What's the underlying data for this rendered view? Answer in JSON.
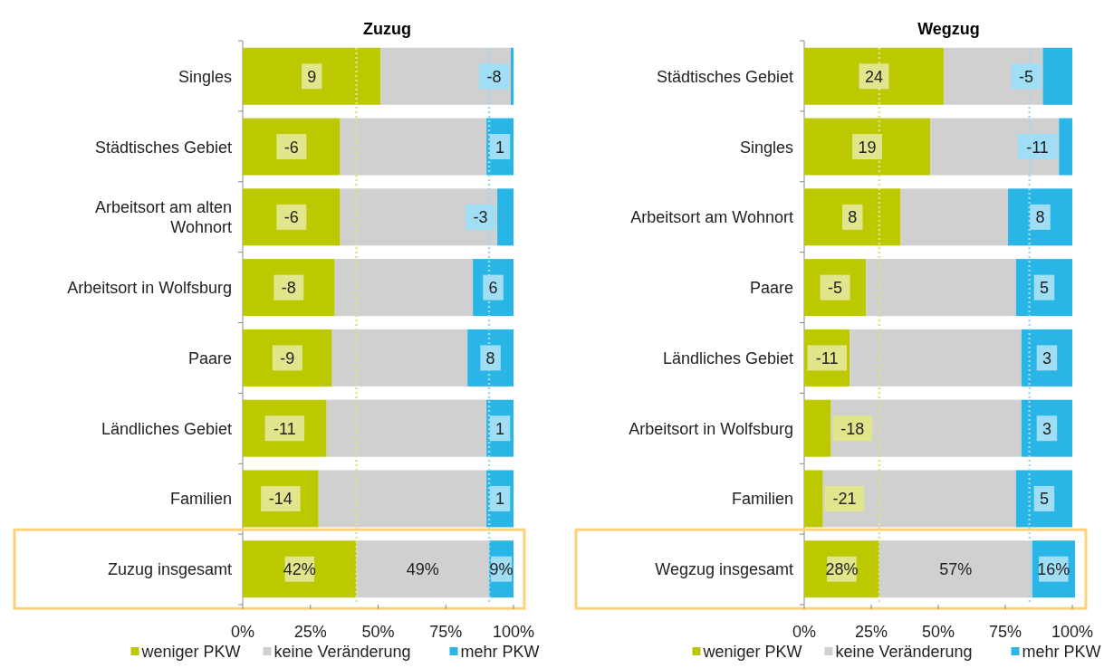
{
  "chart_data": [
    {
      "type": "bar",
      "orientation": "horizontal",
      "stacked": true,
      "title": "Zuzug",
      "categories": [
        "Singles",
        "Städtisches Gebiet",
        "Arbeitsort am alten Wohnort",
        "Arbeitsort in Wolfsburg",
        "Paare",
        "Ländliches Gebiet",
        "Familien",
        "Zuzug insgesamt"
      ],
      "series": [
        {
          "name": "weniger PKW",
          "color": "#bcc800",
          "values": [
            51,
            36,
            36,
            34,
            33,
            31,
            28,
            42
          ],
          "value_labels": [
            null,
            null,
            null,
            null,
            null,
            null,
            null,
            "42%"
          ]
        },
        {
          "name": "keine Veränderung",
          "color": "#d0d0d0",
          "values": [
            48,
            54,
            58,
            51,
            50,
            59,
            62,
            49
          ],
          "value_labels": [
            null,
            null,
            null,
            null,
            null,
            null,
            null,
            "49%"
          ]
        },
        {
          "name": "mehr PKW",
          "color": "#29b6e6",
          "values": [
            1,
            10,
            6,
            15,
            17,
            10,
            10,
            9
          ],
          "value_labels": [
            null,
            null,
            null,
            null,
            null,
            null,
            null,
            "9%"
          ]
        }
      ],
      "annotations": [
        {
          "text": "9",
          "x": 25.5,
          "y": "Singles"
        },
        {
          "text": "-6",
          "x": 18,
          "y": "Städtisches Gebiet"
        },
        {
          "text": "-6",
          "x": 18,
          "y": "Arbeitsort am alten Wohnort"
        },
        {
          "text": "-8",
          "x": 17,
          "y": "Arbeitsort in Wolfsburg"
        },
        {
          "text": "-9",
          "x": 16.5,
          "y": "Paare"
        },
        {
          "text": "-11",
          "x": 15.5,
          "y": "Ländliches Gebiet"
        },
        {
          "text": "-14",
          "x": 14,
          "y": "Familien"
        },
        {
          "text": "-8",
          "x": 99.5,
          "y": "Singles"
        },
        {
          "text": "1",
          "x": 95,
          "y": "Städtisches Gebiet"
        },
        {
          "text": "-3",
          "x": 97,
          "y": "Arbeitsort am alten Wohnort"
        },
        {
          "text": "6",
          "x": 92.5,
          "y": "Arbeitsort in Wolfsburg"
        },
        {
          "text": "8",
          "x": 91.5,
          "y": "Paare"
        },
        {
          "text": "1",
          "x": 95,
          "y": "Ländliches Gebiet"
        },
        {
          "text": "1",
          "x": 95,
          "y": "Familien"
        }
      ],
      "xlim": [
        0,
        100
      ],
      "xticks": [
        {
          "value": 0,
          "label": "0%"
        },
        {
          "value": 25,
          "label": "25%"
        },
        {
          "value": 50,
          "label": "50%"
        },
        {
          "value": 75,
          "label": "75%"
        },
        {
          "value": 100,
          "label": "100%"
        }
      ],
      "ref_lines": [
        {
          "axis": "x",
          "value": 42,
          "color": "#dbe48a",
          "line_style": "dotted"
        },
        {
          "axis": "x",
          "value": 91,
          "color": "#9fd8f2",
          "line_style": "dotted"
        }
      ],
      "legend": "bottom"
    },
    {
      "type": "bar",
      "orientation": "horizontal",
      "stacked": true,
      "title": "Wegzug",
      "categories": [
        "Städtisches Gebiet",
        "Singles",
        "Arbeitsort am Wohnort",
        "Paare",
        "Ländliches Gebiet",
        "Arbeitsort in Wolfsburg",
        "Familien",
        "Wegzug insgesamt"
      ],
      "series": [
        {
          "name": "weniger PKW",
          "color": "#bcc800",
          "values": [
            52,
            47,
            36,
            23,
            17,
            10,
            7,
            28
          ],
          "value_labels": [
            null,
            null,
            null,
            null,
            null,
            null,
            null,
            "28%"
          ]
        },
        {
          "name": "keine Veränderung",
          "color": "#d0d0d0",
          "values": [
            37,
            48,
            40,
            56,
            64,
            71,
            72,
            57
          ],
          "value_labels": [
            null,
            null,
            null,
            null,
            null,
            null,
            null,
            "57%"
          ]
        },
        {
          "name": "mehr PKW",
          "color": "#29b6e6",
          "values": [
            11,
            5,
            24,
            21,
            19,
            19,
            21,
            16
          ],
          "value_labels": [
            null,
            null,
            null,
            null,
            null,
            null,
            null,
            "16%"
          ]
        }
      ],
      "annotations": [
        {
          "text": "24",
          "x": 26,
          "y": "Städtisches Gebiet"
        },
        {
          "text": "19",
          "x": 23.5,
          "y": "Singles"
        },
        {
          "text": "8",
          "x": 18,
          "y": "Arbeitsort am Wohnort"
        },
        {
          "text": "-5",
          "x": 11.5,
          "y": "Paare"
        },
        {
          "text": "-11",
          "x": 8.5,
          "y": "Ländliches Gebiet"
        },
        {
          "text": "-18",
          "x": 5,
          "y": "Arbeitsort in Wolfsburg"
        },
        {
          "text": "-21",
          "x": 3.5,
          "y": "Familien"
        },
        {
          "text": "-5",
          "x": 94.5,
          "y": "Städtisches Gebiet"
        },
        {
          "text": "-11",
          "x": 97.5,
          "y": "Singles"
        },
        {
          "text": "8",
          "x": 88,
          "y": "Arbeitsort am Wohnort"
        },
        {
          "text": "5",
          "x": 89.5,
          "y": "Paare"
        },
        {
          "text": "3",
          "x": 90.5,
          "y": "Ländliches Gebiet"
        },
        {
          "text": "3",
          "x": 90.5,
          "y": "Arbeitsort in Wolfsburg"
        },
        {
          "text": "5",
          "x": 89.5,
          "y": "Familien"
        }
      ],
      "xlim": [
        0,
        101
      ],
      "xticks": [
        {
          "value": 0,
          "label": "0%"
        },
        {
          "value": 25,
          "label": "25%"
        },
        {
          "value": 50,
          "label": "50%"
        },
        {
          "value": 75,
          "label": "75%"
        },
        {
          "value": 100,
          "label": "100%"
        }
      ],
      "ref_lines": [
        {
          "axis": "x",
          "value": 28,
          "color": "#dbe48a",
          "line_style": "dotted"
        },
        {
          "axis": "x",
          "value": 84,
          "color": "#9fd8f2",
          "line_style": "dotted"
        }
      ],
      "legend": "bottom"
    }
  ]
}
